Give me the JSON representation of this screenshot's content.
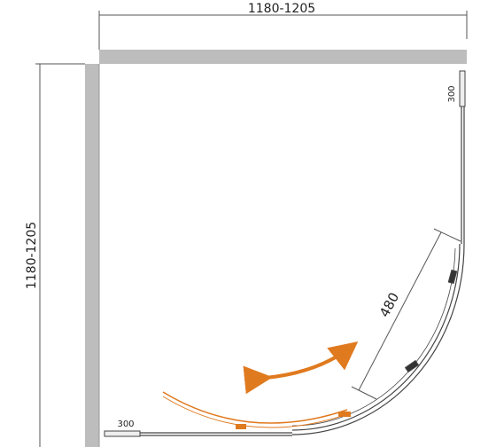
{
  "dimensions": {
    "width": "1180-1205",
    "depth": "1180-1205",
    "door_width": "480",
    "right_panel_offset": "300",
    "bottom_panel_offset": "300"
  }
}
